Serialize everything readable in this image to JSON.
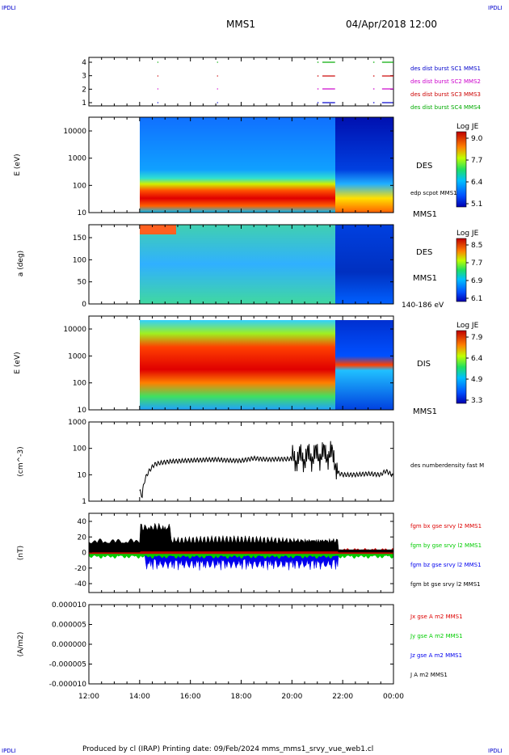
{
  "header": {
    "corner_tl": "IPDLI",
    "corner_tr": "IPDLI",
    "corner_bl": "IPDLI",
    "corner_br": "IPDLI",
    "spacecraft": "MMS1",
    "datetime": "04/Apr/2018 12:00",
    "footer": "Produced by cl (IRAP)   Printing date: 09/Feb/2024   mms_mms1_srvy_vue_web1.cl"
  },
  "chart_data": {
    "type": "line",
    "x_axis": {
      "ticks": [
        "12:00",
        "14:00",
        "16:00",
        "18:00",
        "20:00",
        "22:00",
        "00:00"
      ],
      "range_hours": [
        12,
        24
      ]
    },
    "panels": [
      {
        "id": "burst",
        "type": "event",
        "yticks": [
          "4",
          "3",
          "2",
          "1"
        ],
        "ylim": [
          0.5,
          4.5
        ],
        "series": [
          {
            "name": "des dist burst SC1 MMS1",
            "color": "#0000cc",
            "level": 1
          },
          {
            "name": "des dist burst SC2 MMS2",
            "color": "#cc00cc",
            "level": 2
          },
          {
            "name": "des dist burst SC3 MMS3",
            "color": "#cc0000",
            "level": 3
          },
          {
            "name": "des dist burst SC4 MMS4",
            "color": "#00aa00",
            "level": 4
          }
        ],
        "intervals_hours": [
          [
            14.7,
            14.72
          ],
          [
            17.05,
            17.07
          ],
          [
            21.0,
            21.05
          ],
          [
            21.2,
            21.7
          ],
          [
            23.2,
            23.25
          ],
          [
            23.55,
            24.0
          ]
        ]
      },
      {
        "id": "des_energy",
        "type": "heatmap",
        "ylabel": "E (eV)",
        "yticks": [
          "10000",
          "1000",
          "100",
          "10"
        ],
        "ylog": true,
        "ylim": [
          10,
          30000
        ],
        "species_label": "DES",
        "overlay_label": "edp scpot MMS1",
        "sc_label": "MMS1",
        "colorbar": {
          "title": "Log JE",
          "ticks": [
            "9.0",
            "7.7",
            "6.4",
            "5.1"
          ]
        }
      },
      {
        "id": "des_pitch",
        "type": "heatmap",
        "ylabel": "a (deg)",
        "yticks": [
          "150",
          "100",
          "50",
          "0"
        ],
        "ylim": [
          0,
          180
        ],
        "species_label": "DES",
        "sc_label": "MMS1",
        "energy_label": "140-186 eV",
        "colorbar": {
          "title": "Log JE",
          "ticks": [
            "8.5",
            "7.7",
            "6.9",
            "6.1"
          ]
        }
      },
      {
        "id": "dis_energy",
        "type": "heatmap",
        "ylabel": "E (eV)",
        "yticks": [
          "10000",
          "1000",
          "100",
          "10"
        ],
        "ylog": true,
        "ylim": [
          10,
          30000
        ],
        "species_label": "DIS",
        "sc_label": "MMS1",
        "colorbar": {
          "title": "Log JE",
          "ticks": [
            "7.9",
            "6.4",
            "4.9",
            "3.3"
          ]
        }
      },
      {
        "id": "density",
        "type": "line",
        "ylabel": "(cm^-3)",
        "yticks": [
          "1000",
          "100",
          "10",
          "1"
        ],
        "ylog": true,
        "ylim": [
          1,
          1000
        ],
        "series": [
          {
            "name": "des numberdensity fast M",
            "color": "#000000",
            "points": [
              [
                12.0,
                null
              ],
              [
                14.0,
                2.5
              ],
              [
                14.1,
                1.5
              ],
              [
                14.2,
                6
              ],
              [
                14.4,
                15
              ],
              [
                14.6,
                25
              ],
              [
                14.8,
                28
              ],
              [
                15.2,
                32
              ],
              [
                16,
                35
              ],
              [
                17,
                38
              ],
              [
                17.5,
                35
              ],
              [
                18,
                34
              ],
              [
                18.5,
                42
              ],
              [
                19,
                38
              ],
              [
                20,
                40
              ],
              [
                20.5,
                45
              ],
              [
                21,
                55
              ],
              [
                21.4,
                60
              ],
              [
                21.6,
                55
              ],
              [
                21.8,
                12
              ],
              [
                22,
                10
              ],
              [
                22.5,
                10
              ],
              [
                23,
                11
              ],
              [
                23.5,
                10
              ],
              [
                23.7,
                14
              ],
              [
                24,
                9
              ]
            ]
          }
        ]
      },
      {
        "id": "bfield",
        "type": "line",
        "ylabel": "(nT)",
        "yticks": [
          "40",
          "20",
          "0",
          "-20",
          "-40"
        ],
        "ylim": [
          -50,
          50
        ],
        "series": [
          {
            "name": "fgm bx gse srvy l2 MMS1",
            "color": "#dd0000"
          },
          {
            "name": "fgm by gse srvy l2 MMS1",
            "color": "#00cc00"
          },
          {
            "name": "fgm bz gse srvy l2 MMS1",
            "color": "#0000ee"
          },
          {
            "name": "fgm bt gse srvy l2 MMS1",
            "color": "#000000"
          }
        ]
      },
      {
        "id": "current",
        "type": "line",
        "ylabel": "(A/m2)",
        "yticks": [
          "0.000010",
          "0.000005",
          "0.000000",
          "-0.000005",
          "-0.000010"
        ],
        "ylim": [
          -1e-05,
          1e-05
        ],
        "series": [
          {
            "name": "Jx gse A m2 MMS1",
            "color": "#dd0000"
          },
          {
            "name": "Jy gse A m2 MMS1",
            "color": "#00cc00"
          },
          {
            "name": "Jz gse A m2 MMS1",
            "color": "#0000ee"
          },
          {
            "name": "J A m2 MMS1",
            "color": "#000000"
          }
        ]
      }
    ]
  }
}
